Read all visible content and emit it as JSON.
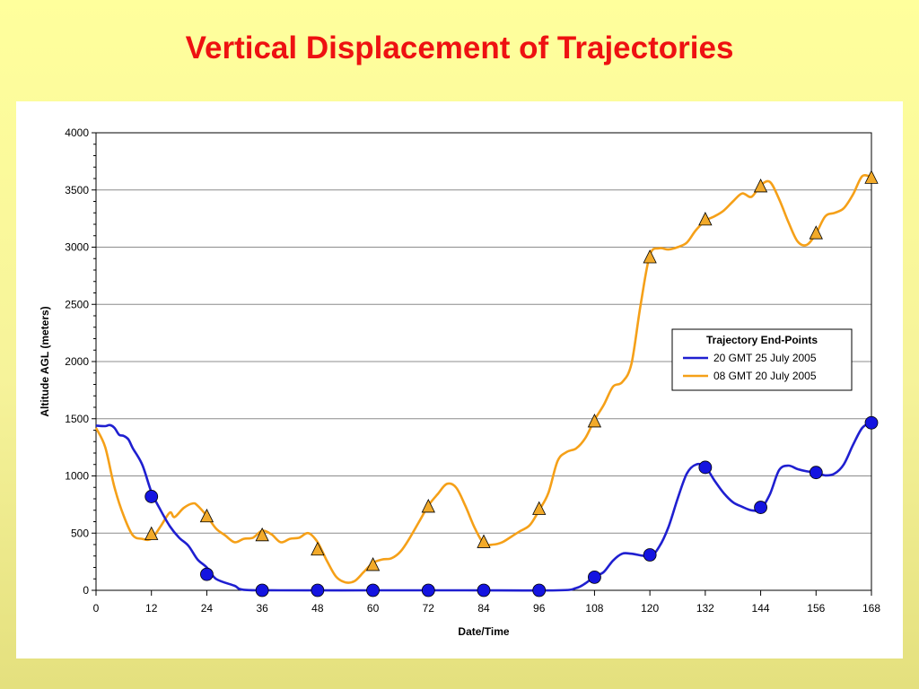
{
  "title": "Vertical Displacement of Trajectories",
  "chart_data": {
    "type": "line",
    "title": "Vertical Displacement of Trajectories",
    "xlabel": "Date/Time",
    "ylabel": "Altitude AGL (meters)",
    "xlim": [
      0,
      168
    ],
    "ylim": [
      0,
      4000
    ],
    "xticks": [
      0,
      12,
      24,
      36,
      48,
      60,
      72,
      84,
      96,
      108,
      120,
      132,
      144,
      156,
      168
    ],
    "yticks": [
      0,
      500,
      1000,
      1500,
      2000,
      2500,
      3000,
      3500,
      4000
    ],
    "grid": "horizontal",
    "legend": {
      "title": "Trajectory End-Points",
      "placement": "right"
    },
    "series": [
      {
        "name": "20 GMT 25 July 2005",
        "color": "#1f1fd0",
        "marker": "circle",
        "marker_color": "#1414e0",
        "points": [
          [
            0,
            1440
          ],
          [
            2,
            1435
          ],
          [
            3,
            1445
          ],
          [
            4,
            1420
          ],
          [
            5,
            1360
          ],
          [
            6,
            1350
          ],
          [
            7,
            1320
          ],
          [
            8,
            1240
          ],
          [
            10,
            1100
          ],
          [
            12,
            860
          ],
          [
            14,
            700
          ],
          [
            16,
            560
          ],
          [
            18,
            460
          ],
          [
            20,
            390
          ],
          [
            22,
            270
          ],
          [
            24,
            200
          ],
          [
            26,
            100
          ],
          [
            30,
            40
          ],
          [
            32,
            5
          ],
          [
            40,
            0
          ],
          [
            60,
            0
          ],
          [
            80,
            0
          ],
          [
            100,
            0
          ],
          [
            104,
            20
          ],
          [
            106,
            60
          ],
          [
            108,
            120
          ],
          [
            110,
            160
          ],
          [
            112,
            260
          ],
          [
            114,
            320
          ],
          [
            116,
            320
          ],
          [
            120,
            300
          ],
          [
            122,
            380
          ],
          [
            124,
            550
          ],
          [
            126,
            800
          ],
          [
            128,
            1020
          ],
          [
            130,
            1100
          ],
          [
            132,
            1080
          ],
          [
            134,
            960
          ],
          [
            136,
            850
          ],
          [
            138,
            770
          ],
          [
            140,
            730
          ],
          [
            142,
            700
          ],
          [
            144,
            710
          ],
          [
            146,
            840
          ],
          [
            148,
            1050
          ],
          [
            150,
            1090
          ],
          [
            152,
            1060
          ],
          [
            154,
            1040
          ],
          [
            156,
            1030
          ],
          [
            158,
            1005
          ],
          [
            160,
            1020
          ],
          [
            162,
            1100
          ],
          [
            164,
            1270
          ],
          [
            166,
            1420
          ],
          [
            168,
            1470
          ]
        ],
        "markers": [
          [
            12,
            820
          ],
          [
            24,
            140
          ],
          [
            36,
            0
          ],
          [
            48,
            0
          ],
          [
            60,
            0
          ],
          [
            72,
            0
          ],
          [
            84,
            0
          ],
          [
            96,
            0
          ],
          [
            108,
            115
          ],
          [
            120,
            310
          ],
          [
            132,
            1075
          ],
          [
            144,
            725
          ],
          [
            156,
            1030
          ],
          [
            168,
            1465
          ]
        ]
      },
      {
        "name": "08 GMT 20 July 2005",
        "color": "#f5a018",
        "marker": "triangle",
        "marker_color": "#f2aa2a",
        "points": [
          [
            0,
            1420
          ],
          [
            2,
            1250
          ],
          [
            4,
            900
          ],
          [
            6,
            650
          ],
          [
            8,
            480
          ],
          [
            10,
            450
          ],
          [
            12,
            450
          ],
          [
            14,
            560
          ],
          [
            16,
            680
          ],
          [
            17,
            640
          ],
          [
            19,
            720
          ],
          [
            21,
            760
          ],
          [
            22,
            740
          ],
          [
            24,
            650
          ],
          [
            26,
            540
          ],
          [
            28,
            480
          ],
          [
            30,
            420
          ],
          [
            32,
            450
          ],
          [
            34,
            460
          ],
          [
            36,
            520
          ],
          [
            38,
            490
          ],
          [
            40,
            420
          ],
          [
            42,
            450
          ],
          [
            44,
            460
          ],
          [
            46,
            500
          ],
          [
            48,
            420
          ],
          [
            50,
            260
          ],
          [
            52,
            120
          ],
          [
            54,
            70
          ],
          [
            56,
            80
          ],
          [
            58,
            160
          ],
          [
            60,
            240
          ],
          [
            62,
            270
          ],
          [
            64,
            280
          ],
          [
            66,
            340
          ],
          [
            68,
            460
          ],
          [
            70,
            600
          ],
          [
            72,
            740
          ],
          [
            74,
            840
          ],
          [
            76,
            930
          ],
          [
            78,
            900
          ],
          [
            80,
            740
          ],
          [
            82,
            550
          ],
          [
            84,
            410
          ],
          [
            86,
            400
          ],
          [
            88,
            420
          ],
          [
            90,
            470
          ],
          [
            92,
            520
          ],
          [
            94,
            570
          ],
          [
            96,
            700
          ],
          [
            98,
            850
          ],
          [
            100,
            1130
          ],
          [
            102,
            1210
          ],
          [
            104,
            1240
          ],
          [
            106,
            1330
          ],
          [
            108,
            1490
          ],
          [
            110,
            1620
          ],
          [
            112,
            1780
          ],
          [
            114,
            1820
          ],
          [
            116,
            1980
          ],
          [
            118,
            2500
          ],
          [
            120,
            2930
          ],
          [
            122,
            2990
          ],
          [
            124,
            2980
          ],
          [
            126,
            3000
          ],
          [
            128,
            3040
          ],
          [
            130,
            3150
          ],
          [
            132,
            3230
          ],
          [
            134,
            3270
          ],
          [
            136,
            3320
          ],
          [
            138,
            3400
          ],
          [
            140,
            3470
          ],
          [
            142,
            3440
          ],
          [
            144,
            3540
          ],
          [
            146,
            3570
          ],
          [
            148,
            3420
          ],
          [
            150,
            3220
          ],
          [
            152,
            3050
          ],
          [
            154,
            3020
          ],
          [
            156,
            3120
          ],
          [
            158,
            3270
          ],
          [
            160,
            3300
          ],
          [
            162,
            3340
          ],
          [
            164,
            3460
          ],
          [
            166,
            3620
          ],
          [
            168,
            3610
          ]
        ],
        "markers": [
          [
            12,
            490
          ],
          [
            24,
            645
          ],
          [
            36,
            480
          ],
          [
            48,
            355
          ],
          [
            60,
            220
          ],
          [
            72,
            730
          ],
          [
            84,
            420
          ],
          [
            96,
            710
          ],
          [
            108,
            1475
          ],
          [
            120,
            2910
          ],
          [
            132,
            3240
          ],
          [
            144,
            3530
          ],
          [
            156,
            3120
          ],
          [
            168,
            3605
          ]
        ]
      }
    ]
  }
}
